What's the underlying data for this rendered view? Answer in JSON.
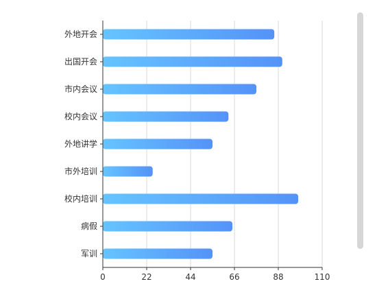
{
  "chart_data": {
    "type": "bar",
    "orientation": "horizontal",
    "categories": [
      "外地开会",
      "出国开会",
      "市内会议",
      "校内会议",
      "外地讲学",
      "市外培训",
      "校内培训",
      "病假",
      "军训"
    ],
    "values": [
      86,
      90,
      77,
      63,
      55,
      25,
      98,
      65,
      55
    ],
    "xlim": [
      0,
      110
    ],
    "xticks": [
      "0",
      "22",
      "44",
      "66",
      "88",
      "110"
    ],
    "grid": true,
    "legend": "none",
    "bar_gradient": [
      "#66c4ff",
      "#5592f7"
    ],
    "axis_color": "#333333",
    "grid_color": "#d9d9d9",
    "title": "",
    "xlabel": "",
    "ylabel": ""
  },
  "scrollbar": {
    "color": "#d6d6d6"
  }
}
